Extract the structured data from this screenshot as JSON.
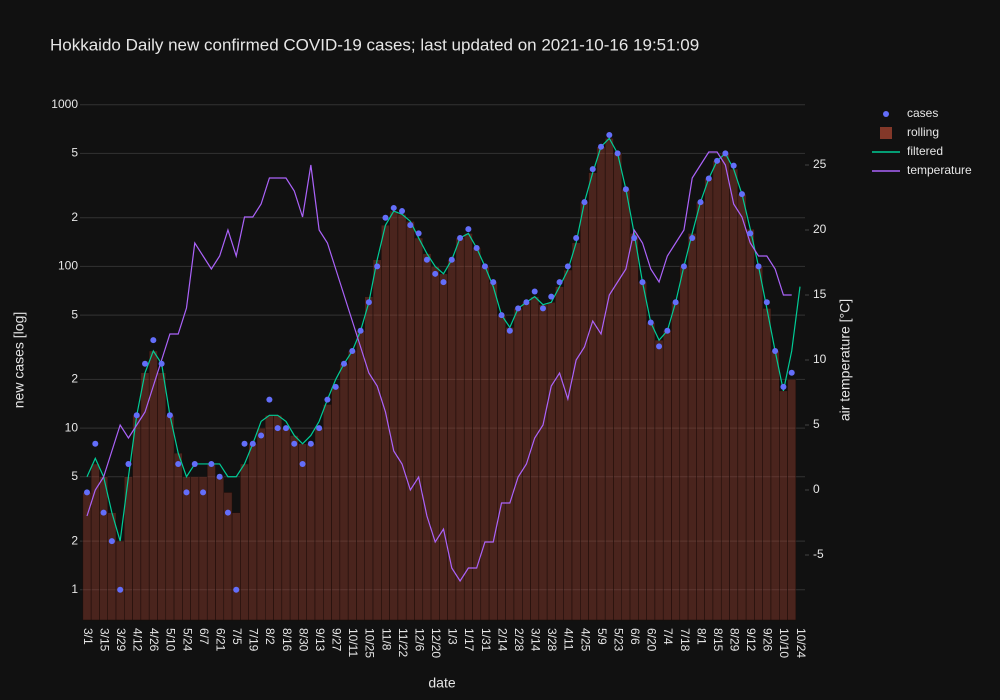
{
  "chart_data": {
    "type": "combo",
    "title": "Hokkaido Daily new confirmed COVID-19 cases; last updated on 2021-10-16 19:51:09",
    "x_label": "date",
    "y_label": "new cases [log]",
    "y2_label": "air temperature [°C]",
    "log_y": true,
    "grid": true,
    "legend": "right",
    "categories": [
      "3/1",
      null,
      "3/15",
      null,
      "3/29",
      null,
      "4/12",
      null,
      "4/26",
      null,
      "5/10",
      null,
      "5/24",
      null,
      "6/7",
      null,
      "6/21",
      null,
      "7/5",
      null,
      "7/19",
      null,
      "8/2",
      null,
      "8/16",
      null,
      "8/30",
      null,
      "9/13",
      null,
      "9/27",
      null,
      "10/11",
      null,
      "10/25",
      null,
      "11/8",
      null,
      "11/22",
      null,
      "12/6",
      null,
      "12/20",
      null,
      "1/3",
      null,
      "1/17",
      null,
      "1/31",
      null,
      "2/14",
      null,
      "2/28",
      null,
      "3/14",
      null,
      "3/28",
      null,
      "4/11",
      null,
      "4/25",
      null,
      "5/9",
      null,
      "5/23",
      null,
      "6/6",
      null,
      "6/20",
      null,
      "7/4",
      null,
      "7/18",
      null,
      "8/1",
      null,
      "8/15",
      null,
      "8/29",
      null,
      "9/12",
      null,
      "9/26",
      null,
      "10/10",
      null,
      "10/24"
    ],
    "ylim": [
      0.65,
      1070
    ],
    "yticks": [
      1,
      {
        "value": 2,
        "label": "2"
      },
      {
        "value": 5,
        "label": "5"
      },
      10,
      {
        "value": 20,
        "label": "2"
      },
      {
        "value": 50,
        "label": "5"
      },
      100,
      {
        "value": 200,
        "label": "2"
      },
      {
        "value": 500,
        "label": "5"
      },
      1000
    ],
    "y2lim": [
      -10,
      30
    ],
    "y2ticks": [
      -5,
      0,
      5,
      10,
      15,
      20,
      25
    ],
    "series": [
      {
        "name": "cases",
        "type": "scatter",
        "color": "#636efa",
        "values": [
          4,
          8,
          3,
          2,
          1,
          6,
          12,
          25,
          35,
          25,
          12,
          6,
          4,
          6,
          4,
          6,
          5,
          3,
          1,
          8,
          8,
          9,
          15,
          10,
          10,
          8,
          6,
          8,
          10,
          15,
          18,
          25,
          30,
          40,
          60,
          100,
          200,
          230,
          220,
          180,
          160,
          110,
          90,
          80,
          110,
          150,
          170,
          130,
          100,
          80,
          50,
          40,
          55,
          60,
          70,
          55,
          65,
          80,
          100,
          150,
          250,
          400,
          550,
          650,
          500,
          300,
          150,
          80,
          45,
          32,
          40,
          60,
          100,
          150,
          250,
          350,
          450,
          500,
          420,
          280,
          160,
          100,
          60,
          30,
          18,
          22,
          null
        ]
      },
      {
        "name": "rolling",
        "type": "bar",
        "color": "#a0422f",
        "values": [
          4,
          6,
          5,
          3,
          2,
          5,
          12,
          22,
          30,
          22,
          12,
          7,
          5,
          5,
          5,
          6,
          5,
          4,
          3,
          6,
          8,
          10,
          12,
          12,
          10,
          9,
          8,
          8,
          10,
          14,
          18,
          25,
          30,
          40,
          65,
          110,
          180,
          220,
          210,
          190,
          150,
          120,
          100,
          90,
          110,
          150,
          160,
          130,
          100,
          80,
          50,
          42,
          55,
          60,
          65,
          58,
          60,
          75,
          95,
          140,
          250,
          380,
          550,
          620,
          500,
          300,
          160,
          80,
          45,
          35,
          40,
          60,
          100,
          160,
          250,
          350,
          450,
          500,
          400,
          280,
          170,
          100,
          55,
          30,
          17,
          20,
          null
        ]
      },
      {
        "name": "filtered",
        "type": "line",
        "color": "#00cc96",
        "values": [
          5,
          6.5,
          5,
          3,
          2,
          5,
          12,
          22,
          30,
          25,
          12,
          7,
          5,
          6,
          6,
          6,
          6,
          5,
          5,
          6,
          8,
          11,
          12,
          12,
          11,
          9,
          8,
          9,
          11,
          15,
          20,
          25,
          30,
          40,
          60,
          110,
          180,
          220,
          210,
          190,
          150,
          120,
          100,
          90,
          110,
          150,
          160,
          130,
          100,
          75,
          50,
          42,
          55,
          60,
          65,
          58,
          60,
          75,
          95,
          140,
          250,
          380,
          550,
          620,
          500,
          300,
          160,
          80,
          45,
          35,
          40,
          60,
          100,
          160,
          250,
          350,
          450,
          500,
          400,
          280,
          170,
          100,
          55,
          30,
          17,
          30,
          75
        ]
      },
      {
        "name": "temperature",
        "type": "line",
        "axis": "y2",
        "color": "#ab63fa",
        "values": [
          -2,
          0,
          1,
          3,
          5,
          4,
          5,
          6,
          8,
          10,
          12,
          12,
          14,
          19,
          18,
          17,
          18,
          20,
          18,
          21,
          21,
          22,
          24,
          24,
          24,
          23,
          21,
          25,
          20,
          19,
          17,
          15,
          13,
          11,
          9,
          8,
          6,
          3,
          2,
          0,
          1,
          -2,
          -4,
          -3,
          -6,
          -7,
          -6,
          -6,
          -4,
          -4,
          -1,
          -1,
          1,
          2,
          4,
          5,
          8,
          9,
          7,
          10,
          11,
          13,
          12,
          15,
          16,
          17,
          20,
          19,
          17,
          16,
          18,
          19,
          20,
          24,
          25,
          26,
          26,
          25,
          22,
          21,
          19,
          18,
          18,
          17,
          15,
          15,
          null
        ]
      }
    ]
  }
}
